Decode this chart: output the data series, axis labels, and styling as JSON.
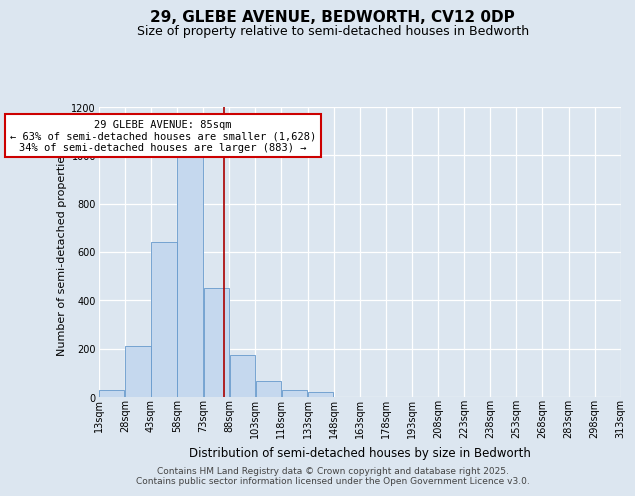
{
  "title_line1": "29, GLEBE AVENUE, BEDWORTH, CV12 0DP",
  "title_line2": "Size of property relative to semi-detached houses in Bedworth",
  "xlabel": "Distribution of semi-detached houses by size in Bedworth",
  "ylabel": "Number of semi-detached properties",
  "footer_line1": "Contains HM Land Registry data © Crown copyright and database right 2025.",
  "footer_line2": "Contains public sector information licensed under the Open Government Licence v3.0.",
  "annotation_title": "29 GLEBE AVENUE: 85sqm",
  "annotation_line1": "← 63% of semi-detached houses are smaller (1,628)",
  "annotation_line2": "34% of semi-detached houses are larger (883) →",
  "bin_edges": [
    13,
    28,
    43,
    58,
    73,
    88,
    103,
    118,
    133,
    148,
    163,
    178,
    193,
    208,
    223,
    238,
    253,
    268,
    283,
    298,
    313
  ],
  "bar_heights": [
    30,
    210,
    640,
    1020,
    450,
    175,
    65,
    30,
    20,
    0,
    0,
    0,
    0,
    0,
    0,
    0,
    0,
    0,
    0,
    0
  ],
  "bar_color": "#c5d8ee",
  "bar_edge_color": "#6699cc",
  "vline_color": "#aa0000",
  "vline_x": 85,
  "annotation_box_facecolor": "#ffffff",
  "annotation_box_edgecolor": "#cc0000",
  "background_color": "#dce6f0",
  "ylim": [
    0,
    1200
  ],
  "yticks": [
    0,
    200,
    400,
    600,
    800,
    1000,
    1200
  ],
  "title_fontsize": 11,
  "subtitle_fontsize": 9,
  "ylabel_fontsize": 8,
  "xlabel_fontsize": 8.5,
  "tick_fontsize": 7,
  "annot_fontsize": 7.5,
  "footer_fontsize": 6.5,
  "grid_color": "#c8d4e4"
}
